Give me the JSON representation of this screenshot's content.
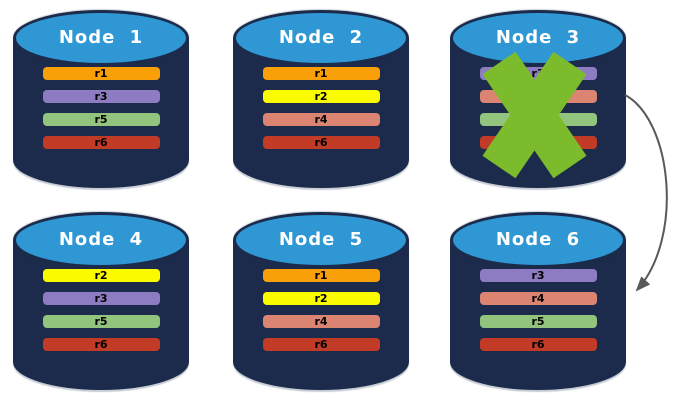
{
  "palette": {
    "cylinder_body": "#1C2B4B",
    "cylinder_top": "#2F97D3",
    "title_text": "#FFFFFF",
    "bar_text": "#000000",
    "x_mark": "#7CBB2B",
    "arrow": "#595959",
    "r1": "#F9A008",
    "r2": "#FBFB00",
    "r3": "#8E7CC3",
    "r4": "#DC8472",
    "r5": "#93C47D",
    "r6": "#C23B26"
  },
  "nodes": [
    {
      "title": "Node 1",
      "replicas": [
        {
          "label": "r1",
          "color": "r1"
        },
        {
          "label": "r3",
          "color": "r3"
        },
        {
          "label": "r5",
          "color": "r5"
        },
        {
          "label": "r6",
          "color": "r6"
        }
      ]
    },
    {
      "title": "Node 2",
      "replicas": [
        {
          "label": "r1",
          "color": "r1"
        },
        {
          "label": "r2",
          "color": "r2"
        },
        {
          "label": "r4",
          "color": "r4"
        },
        {
          "label": "r6",
          "color": "r6"
        }
      ]
    },
    {
      "title": "Node 3",
      "replicas": [
        {
          "label": "r3",
          "color": "r3"
        },
        {
          "label": "",
          "color": "r4"
        },
        {
          "label": "",
          "color": "r5"
        },
        {
          "label": "",
          "color": "r6"
        }
      ]
    },
    {
      "title": "Node 4",
      "replicas": [
        {
          "label": "r2",
          "color": "r2"
        },
        {
          "label": "r3",
          "color": "r3"
        },
        {
          "label": "r5",
          "color": "r5"
        },
        {
          "label": "r6",
          "color": "r6"
        }
      ]
    },
    {
      "title": "Node 5",
      "replicas": [
        {
          "label": "r1",
          "color": "r1"
        },
        {
          "label": "r2",
          "color": "r2"
        },
        {
          "label": "r4",
          "color": "r4"
        },
        {
          "label": "r6",
          "color": "r6"
        }
      ]
    },
    {
      "title": "Node 6",
      "replicas": [
        {
          "label": "r3",
          "color": "r3"
        },
        {
          "label": "r4",
          "color": "r4"
        },
        {
          "label": "r5",
          "color": "r5"
        },
        {
          "label": "r6",
          "color": "r6"
        }
      ]
    }
  ],
  "annotations": {
    "failure_x_mark": {
      "node": "Node 3"
    },
    "failover_arrow": {
      "from": "Node 3",
      "to": "Node 6"
    }
  }
}
